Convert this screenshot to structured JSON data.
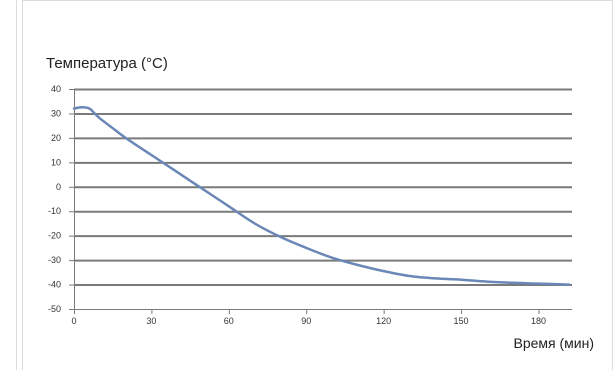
{
  "chart_data": {
    "type": "line",
    "title": "",
    "ylabel": "Температура (°C)",
    "xlabel": "Время (мин)",
    "xlim": [
      0,
      193
    ],
    "ylim": [
      -50,
      40
    ],
    "x_ticks": [
      0,
      30,
      60,
      90,
      120,
      150,
      180
    ],
    "y_ticks": [
      40,
      30,
      20,
      10,
      0,
      -10,
      -20,
      -30,
      -40,
      -50
    ],
    "grid": true,
    "legend": "none",
    "series": [
      {
        "color": "#6b87b8",
        "x": [
          0,
          3,
          6,
          8,
          10,
          15,
          20,
          30,
          40,
          50,
          60,
          70,
          80,
          90,
          100,
          110,
          120,
          130,
          140,
          150,
          160,
          170,
          180,
          192
        ],
        "y": [
          32,
          32.5,
          32,
          30,
          28,
          24,
          20,
          13,
          6,
          -1,
          -8,
          -15,
          -20.5,
          -25,
          -29,
          -32,
          -34.5,
          -36.5,
          -37.5,
          -38,
          -38.8,
          -39.3,
          -39.6,
          -40
        ]
      }
    ]
  }
}
